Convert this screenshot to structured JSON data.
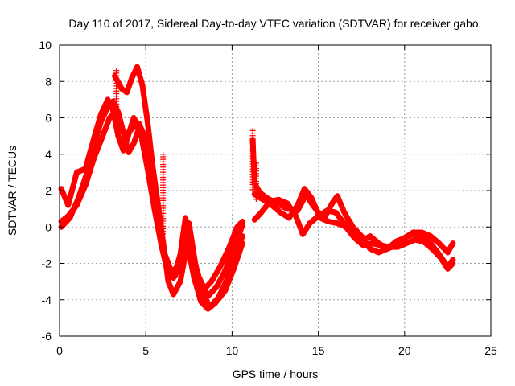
{
  "chart_data": {
    "type": "scatter",
    "title": "Day 110 of 2017, Sidereal Day-to-day VTEC variation (SDTVAR) for receiver gabo",
    "xlabel": "GPS time / hours",
    "ylabel": "SDTVAR / TECUs",
    "xlim": [
      0,
      25
    ],
    "ylim": [
      -6,
      10
    ],
    "xticks": [
      0,
      5,
      10,
      15,
      20,
      25
    ],
    "yticks": [
      -6,
      -4,
      -2,
      0,
      2,
      4,
      6,
      8,
      10
    ],
    "grid": true,
    "marker": "+",
    "color": "#ff0000",
    "series": [
      {
        "name": "trace-1",
        "points": [
          [
            0.1,
            0.3
          ],
          [
            0.5,
            0.6
          ],
          [
            1.0,
            1.2
          ],
          [
            1.5,
            2.3
          ],
          [
            2.0,
            3.8
          ],
          [
            2.5,
            5.0
          ],
          [
            2.9,
            6.0
          ],
          [
            3.2,
            6.3
          ],
          [
            3.5,
            5.6
          ],
          [
            3.8,
            5.0
          ],
          [
            4.2,
            5.4
          ],
          [
            4.6,
            5.7
          ],
          [
            5.0,
            4.8
          ],
          [
            5.4,
            2.5
          ],
          [
            5.8,
            0.0
          ],
          [
            6.2,
            -2.0
          ],
          [
            6.6,
            -2.8
          ],
          [
            7.0,
            -1.5
          ],
          [
            7.3,
            0.5
          ],
          [
            7.6,
            -1.0
          ],
          [
            8.0,
            -2.6
          ],
          [
            8.4,
            -3.4
          ],
          [
            8.8,
            -3.0
          ],
          [
            9.3,
            -2.2
          ],
          [
            9.8,
            -1.2
          ],
          [
            10.3,
            0.0
          ],
          [
            10.6,
            0.3
          ]
        ]
      },
      {
        "name": "trace-2",
        "points": [
          [
            0.1,
            0.0
          ],
          [
            0.6,
            0.5
          ],
          [
            1.1,
            1.6
          ],
          [
            1.6,
            3.0
          ],
          [
            2.0,
            4.5
          ],
          [
            2.4,
            5.8
          ],
          [
            2.8,
            6.6
          ],
          [
            3.1,
            6.9
          ],
          [
            3.4,
            6.3
          ],
          [
            3.7,
            5.2
          ],
          [
            4.0,
            4.1
          ],
          [
            4.3,
            4.6
          ],
          [
            4.6,
            5.4
          ],
          [
            5.0,
            5.0
          ],
          [
            5.3,
            3.0
          ],
          [
            5.7,
            0.8
          ],
          [
            6.1,
            -1.5
          ],
          [
            6.5,
            -2.5
          ],
          [
            7.0,
            -2.0
          ],
          [
            7.4,
            -0.3
          ],
          [
            7.8,
            -1.8
          ],
          [
            8.2,
            -3.2
          ],
          [
            8.6,
            -3.8
          ],
          [
            9.1,
            -3.3
          ],
          [
            9.6,
            -2.4
          ],
          [
            10.1,
            -1.2
          ],
          [
            10.6,
            0.1
          ]
        ]
      },
      {
        "name": "trace-3",
        "points": [
          [
            0.1,
            2.1
          ],
          [
            0.5,
            1.2
          ],
          [
            1.0,
            3.0
          ],
          [
            1.5,
            3.2
          ],
          [
            2.0,
            4.9
          ],
          [
            2.4,
            6.2
          ],
          [
            2.8,
            7.0
          ],
          [
            3.1,
            6.4
          ],
          [
            3.4,
            5.0
          ],
          [
            3.7,
            4.2
          ],
          [
            4.0,
            5.1
          ],
          [
            4.3,
            6.0
          ],
          [
            4.7,
            5.2
          ],
          [
            5.1,
            3.2
          ],
          [
            5.5,
            1.0
          ],
          [
            5.9,
            -1.0
          ],
          [
            6.3,
            -2.6
          ],
          [
            6.7,
            -2.7
          ],
          [
            7.1,
            -1.5
          ],
          [
            7.5,
            0.2
          ],
          [
            7.9,
            -2.2
          ],
          [
            8.3,
            -3.6
          ],
          [
            8.7,
            -4.4
          ],
          [
            9.2,
            -3.9
          ],
          [
            9.7,
            -2.9
          ],
          [
            10.2,
            -1.5
          ],
          [
            10.6,
            -0.5
          ]
        ]
      },
      {
        "name": "trace-4",
        "points": [
          [
            3.2,
            8.3
          ],
          [
            3.6,
            7.6
          ],
          [
            3.9,
            7.4
          ],
          [
            4.2,
            8.2
          ],
          [
            4.5,
            8.8
          ],
          [
            4.8,
            7.8
          ],
          [
            5.1,
            5.8
          ],
          [
            5.4,
            3.3
          ],
          [
            5.7,
            1.3
          ],
          [
            6.0,
            -0.8
          ],
          [
            6.3,
            -3.0
          ],
          [
            6.6,
            -3.7
          ],
          [
            7.0,
            -3.0
          ],
          [
            7.4,
            -0.9
          ],
          [
            7.8,
            -2.8
          ],
          [
            8.2,
            -4.1
          ],
          [
            8.6,
            -4.5
          ],
          [
            9.0,
            -4.2
          ],
          [
            9.6,
            -3.5
          ],
          [
            10.1,
            -2.3
          ],
          [
            10.6,
            -0.9
          ]
        ]
      },
      {
        "name": "trace-5",
        "points": [
          [
            11.2,
            4.8
          ],
          [
            11.3,
            2.4
          ],
          [
            11.6,
            1.9
          ],
          [
            12.0,
            1.6
          ],
          [
            12.6,
            1.3
          ],
          [
            13.2,
            1.0
          ],
          [
            13.8,
            0.9
          ],
          [
            14.3,
            1.8
          ],
          [
            14.6,
            1.3
          ],
          [
            15.0,
            0.8
          ],
          [
            15.4,
            0.6
          ],
          [
            15.8,
            1.3
          ],
          [
            16.1,
            1.7
          ],
          [
            16.5,
            0.8
          ],
          [
            17.0,
            0.0
          ],
          [
            17.5,
            -0.5
          ],
          [
            18.0,
            -1.2
          ],
          [
            18.5,
            -1.4
          ],
          [
            19.0,
            -1.2
          ],
          [
            19.5,
            -0.8
          ],
          [
            20.0,
            -0.6
          ],
          [
            20.5,
            -0.4
          ],
          [
            21.0,
            -0.5
          ],
          [
            21.5,
            -0.9
          ],
          [
            22.0,
            -1.5
          ],
          [
            22.5,
            -2.2
          ],
          [
            22.8,
            -1.8
          ]
        ]
      },
      {
        "name": "trace-6",
        "points": [
          [
            11.3,
            0.4
          ],
          [
            11.7,
            0.8
          ],
          [
            12.2,
            1.4
          ],
          [
            12.7,
            1.5
          ],
          [
            13.2,
            1.3
          ],
          [
            13.7,
            0.6
          ],
          [
            14.1,
            -0.4
          ],
          [
            14.5,
            0.2
          ],
          [
            15.0,
            0.6
          ],
          [
            15.5,
            0.9
          ],
          [
            16.0,
            0.8
          ],
          [
            16.5,
            0.2
          ],
          [
            17.0,
            -0.4
          ],
          [
            17.5,
            -0.8
          ],
          [
            18.0,
            -0.5
          ],
          [
            18.5,
            -0.9
          ],
          [
            19.0,
            -1.2
          ],
          [
            19.5,
            -1.0
          ],
          [
            20.0,
            -0.6
          ],
          [
            20.5,
            -0.3
          ],
          [
            21.0,
            -0.3
          ],
          [
            21.5,
            -0.5
          ],
          [
            22.0,
            -0.9
          ],
          [
            22.5,
            -1.4
          ],
          [
            22.8,
            -0.9
          ]
        ]
      },
      {
        "name": "trace-7",
        "points": [
          [
            11.3,
            1.8
          ],
          [
            11.8,
            1.5
          ],
          [
            12.3,
            1.2
          ],
          [
            12.8,
            0.8
          ],
          [
            13.3,
            0.5
          ],
          [
            13.8,
            1.2
          ],
          [
            14.2,
            2.1
          ],
          [
            14.6,
            1.6
          ],
          [
            15.1,
            0.5
          ],
          [
            15.6,
            0.3
          ],
          [
            16.1,
            0.2
          ],
          [
            16.6,
            0.0
          ],
          [
            17.1,
            -0.6
          ],
          [
            17.6,
            -1.0
          ],
          [
            18.1,
            -0.9
          ],
          [
            18.6,
            -1.0
          ],
          [
            19.1,
            -1.1
          ],
          [
            19.6,
            -1.1
          ],
          [
            20.1,
            -0.9
          ],
          [
            20.6,
            -0.7
          ],
          [
            21.1,
            -0.8
          ],
          [
            21.6,
            -1.2
          ],
          [
            22.1,
            -1.7
          ],
          [
            22.5,
            -2.3
          ],
          [
            22.8,
            -2.0
          ]
        ]
      }
    ],
    "spikes": [
      {
        "x": 3.3,
        "y_top": 8.6,
        "y_bottom": 5.5
      },
      {
        "x": 6.0,
        "y_top": 4.0,
        "y_bottom": -0.5
      },
      {
        "x": 11.2,
        "y_top": 5.3,
        "y_bottom": 2.0
      },
      {
        "x": 11.4,
        "y_top": 3.5,
        "y_bottom": 1.5
      }
    ]
  }
}
